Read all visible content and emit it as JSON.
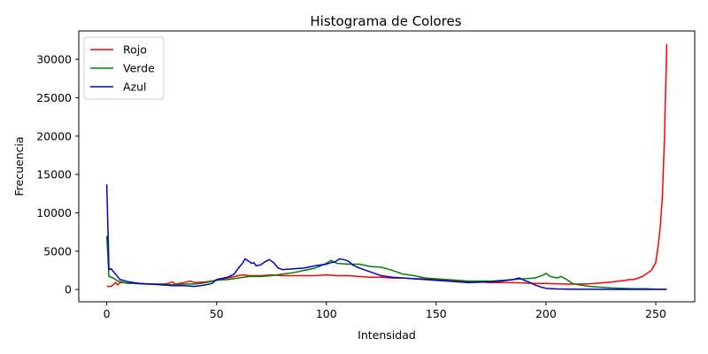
{
  "chart_data": {
    "type": "line",
    "title": "Histograma de Colores",
    "xlabel": "Intensidad",
    "ylabel": "Frecuencia",
    "xlim": [
      -12.75,
      267.75
    ],
    "ylim": [
      -1600,
      33700
    ],
    "xticks": [
      0,
      50,
      100,
      150,
      200,
      250
    ],
    "yticks": [
      0,
      5000,
      10000,
      15000,
      20000,
      25000,
      30000
    ],
    "grid": false,
    "legend_position": "top-left",
    "series": [
      {
        "name": "Rojo",
        "color": "#ff0000",
        "points": [
          [
            0,
            400
          ],
          [
            2,
            400
          ],
          [
            4,
            900
          ],
          [
            5,
            600
          ],
          [
            6,
            900
          ],
          [
            8,
            900
          ],
          [
            10,
            800
          ],
          [
            15,
            800
          ],
          [
            20,
            700
          ],
          [
            25,
            700
          ],
          [
            28,
            800
          ],
          [
            30,
            1000
          ],
          [
            31,
            700
          ],
          [
            35,
            900
          ],
          [
            38,
            1100
          ],
          [
            40,
            900
          ],
          [
            45,
            1000
          ],
          [
            50,
            1200
          ],
          [
            55,
            1500
          ],
          [
            60,
            1800
          ],
          [
            62,
            1900
          ],
          [
            65,
            1800
          ],
          [
            70,
            1800
          ],
          [
            75,
            1900
          ],
          [
            80,
            1800
          ],
          [
            85,
            1800
          ],
          [
            90,
            1800
          ],
          [
            95,
            1800
          ],
          [
            100,
            1900
          ],
          [
            105,
            1800
          ],
          [
            110,
            1800
          ],
          [
            115,
            1700
          ],
          [
            120,
            1600
          ],
          [
            125,
            1600
          ],
          [
            130,
            1500
          ],
          [
            135,
            1500
          ],
          [
            140,
            1400
          ],
          [
            145,
            1400
          ],
          [
            150,
            1300
          ],
          [
            155,
            1200
          ],
          [
            160,
            1100
          ],
          [
            165,
            1000
          ],
          [
            170,
            1000
          ],
          [
            175,
            900
          ],
          [
            180,
            900
          ],
          [
            185,
            900
          ],
          [
            190,
            850
          ],
          [
            195,
            800
          ],
          [
            200,
            800
          ],
          [
            205,
            750
          ],
          [
            210,
            700
          ],
          [
            215,
            700
          ],
          [
            220,
            750
          ],
          [
            225,
            850
          ],
          [
            230,
            1000
          ],
          [
            235,
            1150
          ],
          [
            238,
            1300
          ],
          [
            240,
            1300
          ],
          [
            242,
            1500
          ],
          [
            244,
            1700
          ],
          [
            246,
            2100
          ],
          [
            248,
            2500
          ],
          [
            250,
            3500
          ],
          [
            251,
            5500
          ],
          [
            252,
            8000
          ],
          [
            253,
            12000
          ],
          [
            254,
            20000
          ],
          [
            255,
            32000
          ]
        ]
      },
      {
        "name": "Verde",
        "color": "#008000",
        "points": [
          [
            0,
            7000
          ],
          [
            1,
            1700
          ],
          [
            3,
            1500
          ],
          [
            5,
            1100
          ],
          [
            8,
            900
          ],
          [
            12,
            800
          ],
          [
            18,
            700
          ],
          [
            25,
            700
          ],
          [
            30,
            600
          ],
          [
            35,
            700
          ],
          [
            40,
            700
          ],
          [
            45,
            900
          ],
          [
            50,
            1200
          ],
          [
            55,
            1300
          ],
          [
            60,
            1500
          ],
          [
            65,
            1700
          ],
          [
            70,
            1700
          ],
          [
            75,
            1800
          ],
          [
            80,
            2000
          ],
          [
            85,
            2200
          ],
          [
            90,
            2500
          ],
          [
            95,
            2800
          ],
          [
            100,
            3400
          ],
          [
            102,
            3800
          ],
          [
            105,
            3400
          ],
          [
            110,
            3300
          ],
          [
            115,
            3300
          ],
          [
            120,
            3000
          ],
          [
            125,
            2900
          ],
          [
            130,
            2500
          ],
          [
            135,
            2000
          ],
          [
            140,
            1800
          ],
          [
            145,
            1500
          ],
          [
            150,
            1400
          ],
          [
            155,
            1300
          ],
          [
            160,
            1200
          ],
          [
            165,
            1100
          ],
          [
            170,
            1100
          ],
          [
            175,
            1100
          ],
          [
            180,
            1200
          ],
          [
            185,
            1300
          ],
          [
            190,
            1400
          ],
          [
            195,
            1500
          ],
          [
            198,
            1800
          ],
          [
            200,
            2100
          ],
          [
            202,
            1700
          ],
          [
            205,
            1500
          ],
          [
            207,
            1700
          ],
          [
            210,
            1200
          ],
          [
            212,
            800
          ],
          [
            215,
            600
          ],
          [
            220,
            400
          ],
          [
            225,
            300
          ],
          [
            230,
            200
          ],
          [
            235,
            150
          ],
          [
            240,
            100
          ],
          [
            245,
            100
          ],
          [
            250,
            50
          ],
          [
            255,
            50
          ]
        ]
      },
      {
        "name": "Azul",
        "color": "#0000cc",
        "points": [
          [
            0,
            13700
          ],
          [
            1,
            2600
          ],
          [
            2,
            2700
          ],
          [
            4,
            2000
          ],
          [
            6,
            1300
          ],
          [
            10,
            1000
          ],
          [
            15,
            800
          ],
          [
            20,
            700
          ],
          [
            25,
            600
          ],
          [
            30,
            500
          ],
          [
            35,
            500
          ],
          [
            40,
            400
          ],
          [
            45,
            600
          ],
          [
            48,
            800
          ],
          [
            50,
            1300
          ],
          [
            55,
            1600
          ],
          [
            58,
            2000
          ],
          [
            60,
            2800
          ],
          [
            62,
            3500
          ],
          [
            63,
            4000
          ],
          [
            65,
            3600
          ],
          [
            66,
            3400
          ],
          [
            67,
            3500
          ],
          [
            68,
            3100
          ],
          [
            70,
            3200
          ],
          [
            72,
            3600
          ],
          [
            74,
            3900
          ],
          [
            76,
            3500
          ],
          [
            78,
            2800
          ],
          [
            80,
            2600
          ],
          [
            85,
            2700
          ],
          [
            90,
            2800
          ],
          [
            95,
            3100
          ],
          [
            100,
            3300
          ],
          [
            102,
            3500
          ],
          [
            104,
            3600
          ],
          [
            106,
            4000
          ],
          [
            108,
            3900
          ],
          [
            110,
            3700
          ],
          [
            112,
            3200
          ],
          [
            115,
            2800
          ],
          [
            118,
            2500
          ],
          [
            120,
            2300
          ],
          [
            125,
            1800
          ],
          [
            130,
            1600
          ],
          [
            135,
            1500
          ],
          [
            140,
            1400
          ],
          [
            145,
            1300
          ],
          [
            150,
            1200
          ],
          [
            155,
            1100
          ],
          [
            160,
            1000
          ],
          [
            165,
            900
          ],
          [
            170,
            950
          ],
          [
            175,
            1000
          ],
          [
            180,
            1100
          ],
          [
            185,
            1300
          ],
          [
            188,
            1500
          ],
          [
            190,
            1200
          ],
          [
            192,
            1000
          ],
          [
            195,
            600
          ],
          [
            198,
            300
          ],
          [
            200,
            150
          ],
          [
            205,
            80
          ],
          [
            210,
            50
          ],
          [
            220,
            30
          ],
          [
            230,
            20
          ],
          [
            240,
            20
          ],
          [
            250,
            20
          ],
          [
            255,
            20
          ]
        ]
      }
    ]
  }
}
